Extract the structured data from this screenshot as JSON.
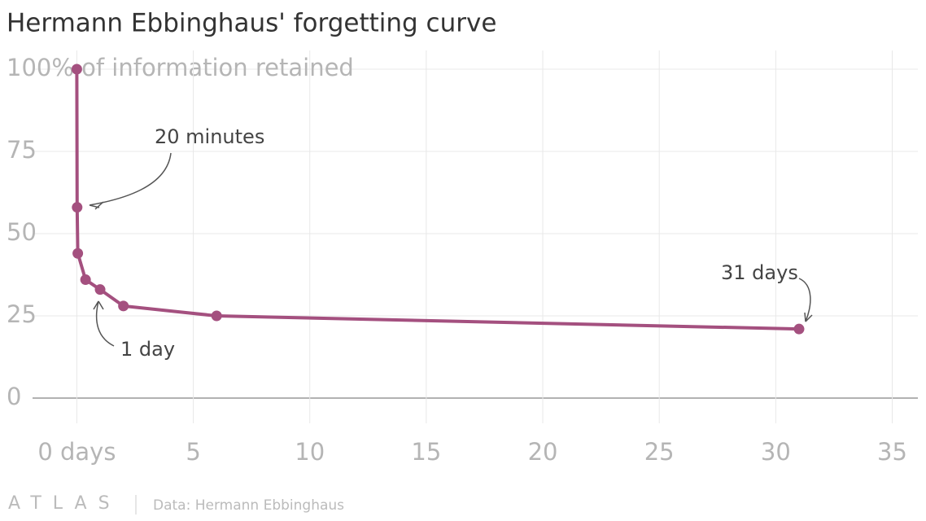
{
  "chart_data": {
    "type": "line",
    "title": "Hermann Ebbinghaus' forgetting curve",
    "x": [
      0,
      0.0139,
      0.042,
      0.375,
      1,
      2,
      6,
      31
    ],
    "series": [
      {
        "name": "Information retained",
        "color": "#a4507f",
        "values": [
          100,
          58,
          44,
          36,
          33,
          28,
          25,
          21
        ]
      }
    ],
    "xlim": [
      -1.9,
      36.1
    ],
    "xticks": [
      {
        "value": 0,
        "label": "0 days"
      },
      5,
      10,
      15,
      20,
      25,
      30,
      35
    ],
    "ylim": [
      0,
      100
    ],
    "yticks": [
      0,
      25,
      50,
      75,
      {
        "value": 100,
        "label": "100% of information retained"
      }
    ],
    "grid": true,
    "annotations": [
      "20 minutes",
      "1 day",
      "31 days"
    ],
    "source": "Data: Hermann Ebbinghaus",
    "brand": "ATLAS"
  }
}
